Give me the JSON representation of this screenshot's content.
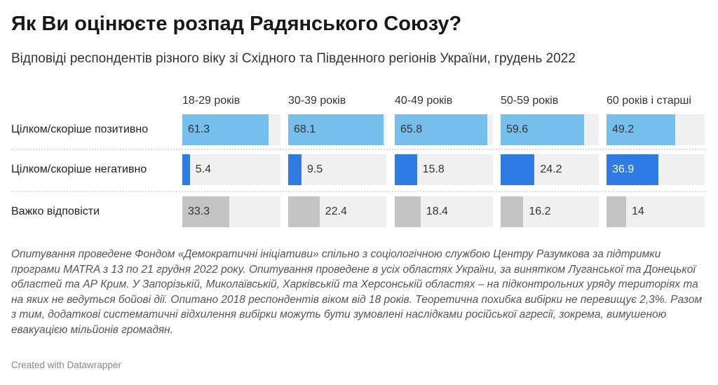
{
  "chart_data": {
    "type": "bar",
    "title": "Як Ви оцінюєте розпад Радянського Союзу?",
    "subtitle": "Відповіді респондентів різного віку зі Східного та Південного регіонів України, грудень 2022",
    "categories": [
      "Цілком/скоріше позитивно",
      "Цілком/скоріше негативно",
      "Важко відповісти"
    ],
    "series": [
      {
        "name": "18-29 років",
        "values": [
          61.3,
          5.4,
          33.3
        ]
      },
      {
        "name": "30-39 років",
        "values": [
          68.1,
          9.5,
          22.4
        ]
      },
      {
        "name": "40-49 років",
        "values": [
          65.8,
          15.8,
          18.4
        ]
      },
      {
        "name": "50-59 років",
        "values": [
          59.6,
          24.2,
          16.2
        ]
      },
      {
        "name": "60 років і старші",
        "values": [
          49.2,
          36.9,
          14
        ]
      }
    ],
    "xlim": [
      0,
      70
    ],
    "colors": [
      "#74bfeb",
      "#2e7be3",
      "#c4c4c4"
    ],
    "track_color": "#f0f0f0",
    "grid": false
  },
  "notes": "Опитування проведене Фондом «Демократичні ініціативи» спільно з соціологічною службою Центру Разумкова за підтримки програми MATRA з 13 по 21 грудня 2022 року. Опитування проведене в усіх областях України, за винятком Луганської та Донецької областей та АР Крим. У Запорізькій, Миколаївській, Харківській та Херсонській областях – на підконтрольних уряду територіях та на яких не ведуться бойові дії. Опитано 2018 респондентів віком від 18 років. Теоретична похибка вибірки не перевищує 2,3%. Разом з тим, додаткові систематичні відхилення вибірки можуть бути зумовлені наслідками російської агресії, зокрема, вимушеною евакуацією мільйонів громадян.",
  "credit": "Created with Datawrapper"
}
